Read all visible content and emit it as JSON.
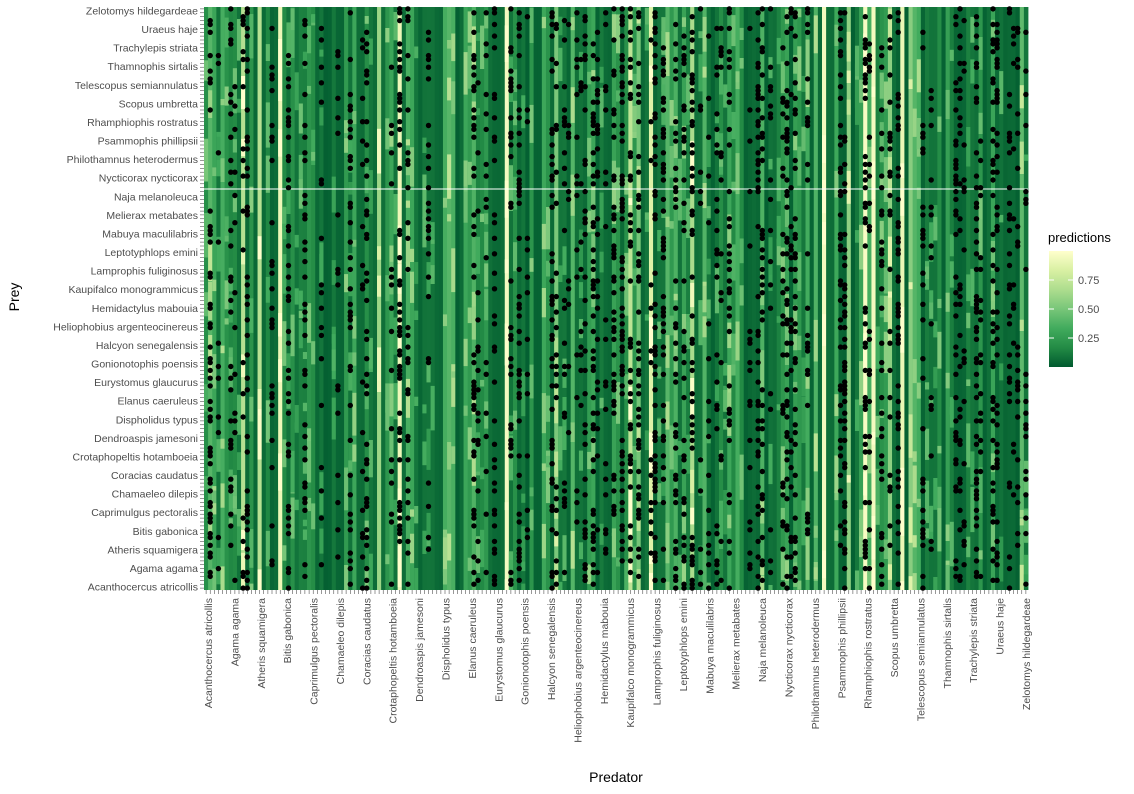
{
  "chart_data": {
    "type": "heatmap",
    "title": "",
    "xlabel": "Predator",
    "ylabel": "Prey",
    "legend": {
      "title": "predictions",
      "placement": "right",
      "breaks": [
        0.25,
        0.5,
        0.75
      ],
      "labels": [
        "0.25",
        "0.50",
        "0.75"
      ],
      "range": [
        0,
        1
      ],
      "colors": [
        "#005a2f",
        "#238b45",
        "#41ab5d",
        "#78c679",
        "#addd8e",
        "#d9f0a3",
        "#ffffcc"
      ]
    },
    "points_color": "#000000",
    "grid": false,
    "x_tick_labels": [
      "Acanthocercus atricollis",
      "Agama agama",
      "Atheris squamigera",
      "Bitis gabonica",
      "Caprimulgus pectoralis",
      "Chamaeleo dilepis",
      "Coracias caudatus",
      "Crotaphopeltis hotamboeia",
      "Dendroaspis jamesoni",
      "Dispholidus typus",
      "Elanus caeruleus",
      "Eurystomus glaucurus",
      "Gonionotophis poensis",
      "Halcyon senegalensis",
      "Heliophobius argenteocinereus",
      "Hemidactylus mabouia",
      "Kaupifalco monogrammicus",
      "Lamprophis fuliginosus",
      "Leptotyphlops emini",
      "Mabuya maculilabris",
      "Melierax metabates",
      "Naja melanoleuca",
      "Nycticorax nycticorax",
      "Philothamnus heterodermus",
      "Psammophis phillipsii",
      "Rhamphiophis rostratus",
      "Scopus umbretta",
      "Telescopus semiannulatus",
      "Thamnophis sirtalis",
      "Trachylepis striata",
      "Uraeus haje",
      "Zelotomys hildegardeae"
    ],
    "y_tick_labels": [
      "Zelotomys hildegardeae",
      "Uraeus haje",
      "Trachylepis striata",
      "Thamnophis sirtalis",
      "Telescopus semiannulatus",
      "Scopus umbretta",
      "Rhamphiophis rostratus",
      "Psammophis phillipsii",
      "Philothamnus heterodermus",
      "Nycticorax nycticorax",
      "Naja melanoleuca",
      "Melierax metabates",
      "Mabuya maculilabris",
      "Leptotyphlops emini",
      "Lamprophis fuliginosus",
      "Kaupifalco monogrammicus",
      "Hemidactylus mabouia",
      "Heliophobius argenteocinereus",
      "Halcyon senegalensis",
      "Gonionotophis poensis",
      "Eurystomus glaucurus",
      "Elanus caeruleus",
      "Dispholidus typus",
      "Dendroaspis jamesoni",
      "Crotaphopeltis hotamboeia",
      "Coracias caudatus",
      "Chamaeleo dilepis",
      "Caprimulgus pectoralis",
      "Bitis gabonica",
      "Atheris squamigera",
      "Agama agama",
      "Acanthocercus atricollis"
    ]
  }
}
